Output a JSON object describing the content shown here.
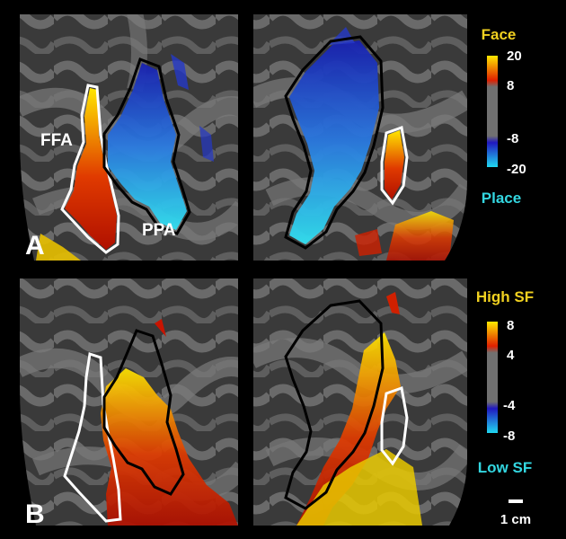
{
  "colors": {
    "background": "#000000",
    "cortex_dark": "#3c3c3c",
    "cortex_light": "#6e6e6e",
    "hot_high": "#ffe600",
    "hot_low": "#c81400",
    "cool_high": "#33e0e6",
    "cool_low": "#2030c8",
    "face_label": "#f0d020",
    "place_label": "#33d6e0",
    "ffa_outline": "#ffffff",
    "ppa_outline": "#000000"
  },
  "panel_a": {
    "letter": "A",
    "labels": {
      "ffa": "FFA",
      "ppa": "PPA"
    },
    "colorbar": {
      "top_label": "Face",
      "bottom_label": "Place",
      "ticks": [
        "20",
        "8",
        "-8",
        "-20"
      ]
    }
  },
  "panel_b": {
    "letter": "B",
    "colorbar": {
      "top_label": "High SF",
      "bottom_label": "Low SF",
      "ticks": [
        "8",
        "4",
        "-4",
        "-8"
      ]
    }
  },
  "scale_bar": {
    "label": "1 cm"
  }
}
